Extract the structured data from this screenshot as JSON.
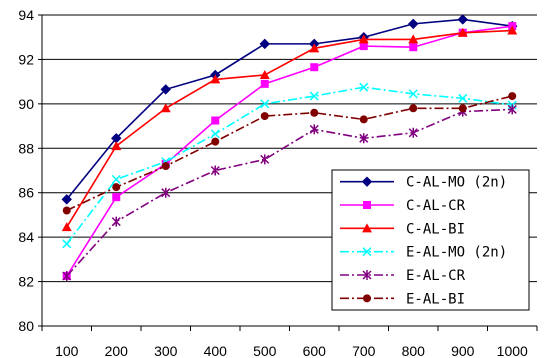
{
  "chart_data": {
    "type": "line",
    "title": "",
    "xlabel": "",
    "ylabel": "",
    "x": [
      100,
      200,
      300,
      400,
      500,
      600,
      700,
      800,
      900,
      1000
    ],
    "ylim": [
      80,
      94
    ],
    "yticks": [
      80,
      82,
      84,
      86,
      88,
      90,
      92,
      94
    ],
    "grid": "horizontal",
    "legend_position": "lower-right",
    "series": [
      {
        "name": "C-AL-MO (2n)",
        "color": "#000080",
        "marker": "diamond",
        "dash": "solid",
        "values": [
          85.7,
          88.45,
          90.65,
          91.3,
          92.7,
          92.7,
          93.0,
          93.6,
          93.8,
          93.5
        ]
      },
      {
        "name": "C-AL-CR",
        "color": "#ff00ff",
        "marker": "square",
        "dash": "solid",
        "values": [
          82.25,
          85.8,
          87.3,
          89.25,
          90.9,
          91.65,
          92.6,
          92.55,
          93.2,
          93.5
        ]
      },
      {
        "name": "C-AL-BI",
        "color": "#ff0000",
        "marker": "triangle",
        "dash": "solid",
        "values": [
          84.45,
          88.1,
          89.8,
          91.1,
          91.3,
          92.5,
          92.9,
          92.9,
          93.2,
          93.3
        ]
      },
      {
        "name": "E-AL-MO (2n)",
        "color": "#00ffff",
        "marker": "x",
        "dash": "dashdot",
        "values": [
          83.7,
          86.6,
          87.4,
          88.65,
          90.0,
          90.35,
          90.75,
          90.45,
          90.25,
          89.95
        ]
      },
      {
        "name": "E-AL-CR",
        "color": "#800080",
        "marker": "star",
        "dash": "dashdot",
        "values": [
          82.25,
          84.7,
          86.0,
          87.0,
          87.5,
          88.85,
          88.45,
          88.7,
          89.65,
          89.75
        ]
      },
      {
        "name": "E-AL-BI",
        "color": "#800000",
        "marker": "circle",
        "dash": "dashdot",
        "values": [
          85.2,
          86.25,
          87.2,
          88.3,
          89.45,
          89.6,
          89.3,
          89.8,
          89.8,
          90.35
        ]
      }
    ]
  }
}
